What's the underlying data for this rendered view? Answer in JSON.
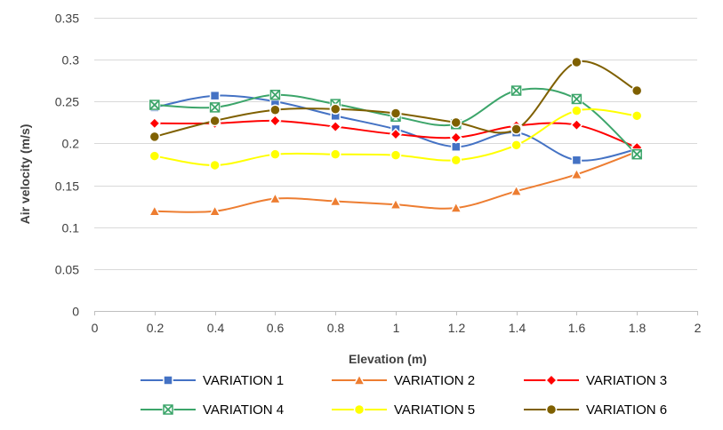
{
  "chart_data": {
    "type": "line",
    "smooth": true,
    "xlabel": "Elevation (m)",
    "ylabel": "Air velocity (m/s)",
    "xlim": [
      0,
      2
    ],
    "ylim": [
      0,
      0.35
    ],
    "xticks": [
      0,
      0.2,
      0.4,
      0.6,
      0.8,
      1,
      1.2,
      1.4,
      1.6,
      1.8,
      2
    ],
    "xtick_labels": [
      "0",
      "0.2",
      "0.4",
      "0.6",
      "0.8",
      "1",
      "1.2",
      "1.4",
      "1.6",
      "1.8",
      "2"
    ],
    "yticks": [
      0,
      0.05,
      0.1,
      0.15,
      0.2,
      0.25,
      0.3,
      0.35
    ],
    "ytick_labels": [
      "0",
      "0.05",
      "0.1",
      "0.15",
      "0.2",
      "0.25",
      "0.3",
      "0.35"
    ],
    "grid": "horizontal",
    "legend_position": "bottom",
    "x": [
      0.2,
      0.4,
      0.6,
      0.8,
      1.0,
      1.2,
      1.4,
      1.6,
      1.8
    ],
    "series": [
      {
        "name": "VARIATION 1",
        "color": "#4472C4",
        "marker": "square",
        "values": [
          0.243,
          0.257,
          0.25,
          0.233,
          0.217,
          0.196,
          0.213,
          0.18,
          0.193
        ]
      },
      {
        "name": "VARIATION 2",
        "color": "#ED7D31",
        "marker": "triangle",
        "values": [
          0.119,
          0.119,
          0.134,
          0.131,
          0.127,
          0.123,
          0.143,
          0.163,
          0.19
        ]
      },
      {
        "name": "VARIATION 3",
        "color": "#FF0000",
        "marker": "diamond",
        "values": [
          0.224,
          0.224,
          0.227,
          0.22,
          0.211,
          0.207,
          0.221,
          0.222,
          0.195
        ]
      },
      {
        "name": "VARIATION 4",
        "color": "#3CA56A",
        "marker": "x-square",
        "values": [
          0.246,
          0.243,
          0.258,
          0.247,
          0.232,
          0.223,
          0.263,
          0.253,
          0.187
        ]
      },
      {
        "name": "VARIATION 5",
        "color": "#FFFF00",
        "marker": "circle",
        "values": [
          0.185,
          0.174,
          0.187,
          0.187,
          0.186,
          0.18,
          0.198,
          0.239,
          0.233
        ]
      },
      {
        "name": "VARIATION 6",
        "color": "#7F6000",
        "marker": "circle",
        "values": [
          0.208,
          0.227,
          0.24,
          0.241,
          0.236,
          0.225,
          0.217,
          0.297,
          0.263
        ]
      }
    ]
  }
}
